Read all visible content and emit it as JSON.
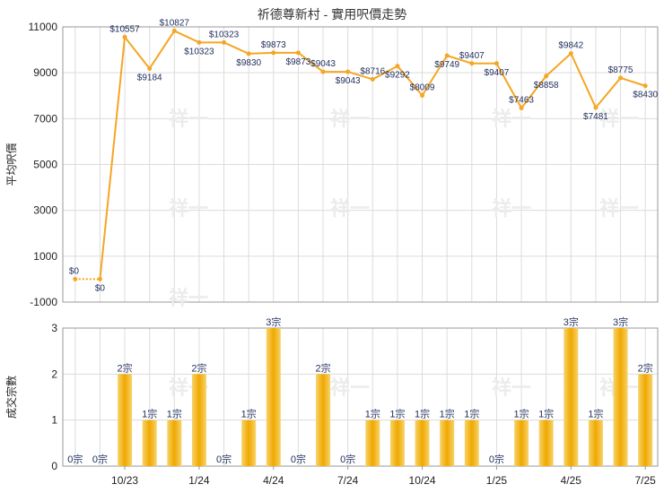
{
  "chart_data": [
    {
      "type": "line",
      "title": "祈德尊新村 - 實用呎價走勢",
      "ylabel": "平均呎價",
      "ylim": [
        -1000,
        11000
      ],
      "yticks": [
        -1000,
        1000,
        3000,
        5000,
        7000,
        9000,
        11000
      ],
      "grid": true,
      "point_labels": [
        "$0",
        "$0",
        "$10557",
        "$9184",
        "$10827",
        "$10323",
        "$10323",
        "$9830",
        "$9873",
        "$9873",
        "$9043",
        "$9043",
        "$8716",
        "$9292",
        "$8009",
        "$9749",
        "$9407",
        "$9407",
        "$7463",
        "$8858",
        "$9842",
        "$7481",
        "$8775",
        "$8430"
      ],
      "series": [
        {
          "values": [
            0,
            0,
            10557,
            9184,
            10827,
            10323,
            10323,
            9830,
            9873,
            9873,
            9043,
            9043,
            8716,
            9292,
            8009,
            9749,
            9407,
            9407,
            7463,
            8858,
            9842,
            7481,
            8775,
            8430
          ],
          "color": "#f5a623"
        }
      ],
      "dashed_segment": [
        0,
        1
      ]
    },
    {
      "type": "bar",
      "ylabel": "成交宗數",
      "ylim": [
        0,
        3
      ],
      "yticks": [
        0,
        1,
        2,
        3
      ],
      "xticks": [
        "10/23",
        "1/24",
        "4/24",
        "7/24",
        "10/24",
        "1/25",
        "4/25",
        "7/25"
      ],
      "xtick_index": [
        2,
        5,
        8,
        11,
        14,
        17,
        20,
        23
      ],
      "values": [
        0,
        0,
        2,
        1,
        1,
        2,
        0,
        1,
        3,
        0,
        2,
        0,
        1,
        1,
        1,
        1,
        1,
        0,
        1,
        1,
        3,
        1,
        3,
        2
      ],
      "bar_labels": [
        "0宗",
        "0宗",
        "2宗",
        "1宗",
        "1宗",
        "2宗",
        "0宗",
        "1宗",
        "3宗",
        "0宗",
        "2宗",
        "0宗",
        "1宗",
        "1宗",
        "1宗",
        "1宗",
        "1宗",
        "0宗",
        "1宗",
        "1宗",
        "3宗",
        "1宗",
        "3宗",
        "2宗"
      ],
      "color": "#f5b800"
    }
  ],
  "watermark": "祥一"
}
